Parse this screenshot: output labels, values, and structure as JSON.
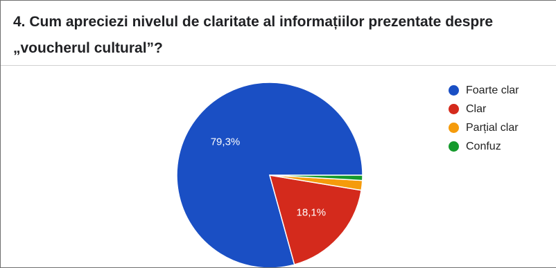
{
  "question": {
    "line1": "4. Cum apreciezi nivelul de claritate al informațiilor prezentate despre",
    "line2": "„voucherul cultural”?"
  },
  "chart_data": {
    "type": "pie",
    "title": "4. Cum apreciezi nivelul de claritate al informațiilor prezentate despre „voucherul cultural”?",
    "slices": [
      {
        "label": "Foarte clar",
        "value": 79.3,
        "display": "79,3%",
        "color": "#1a4fc4"
      },
      {
        "label": "Clar",
        "value": 18.1,
        "display": "18,1%",
        "color": "#d42a1c"
      },
      {
        "label": "Parțial clar",
        "value": 1.7,
        "display": "",
        "color": "#f59b0c"
      },
      {
        "label": "Confuz",
        "value": 0.9,
        "display": "",
        "color": "#159a2c"
      }
    ],
    "legend_position": "right"
  }
}
